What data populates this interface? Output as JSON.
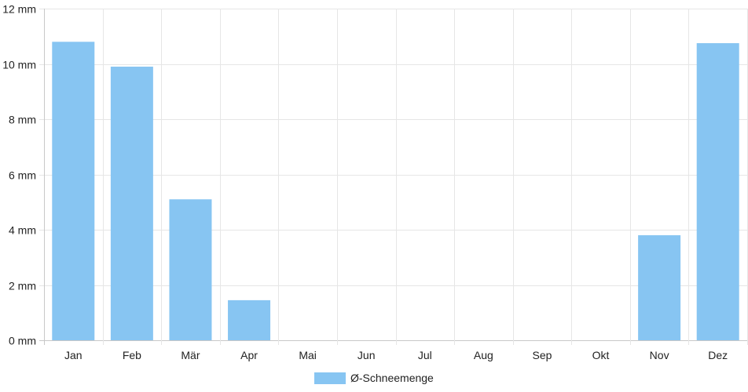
{
  "chart_data": {
    "type": "bar",
    "categories": [
      "Jan",
      "Feb",
      "Mär",
      "Apr",
      "Mai",
      "Jun",
      "Jul",
      "Aug",
      "Sep",
      "Okt",
      "Nov",
      "Dez"
    ],
    "series": [
      {
        "name": "Ø-Schneemenge",
        "values": [
          10.8,
          9.9,
          5.1,
          1.45,
          0,
          0,
          0,
          0,
          0,
          0,
          3.8,
          10.75
        ],
        "color": "#87c5f2"
      }
    ],
    "y_ticks": [
      "0 mm",
      "2 mm",
      "4 mm",
      "6 mm",
      "8 mm",
      "10 mm",
      "12 mm"
    ],
    "ylim": [
      0,
      12
    ],
    "unit": "mm",
    "grid": true,
    "legend_position": "bottom-center"
  }
}
